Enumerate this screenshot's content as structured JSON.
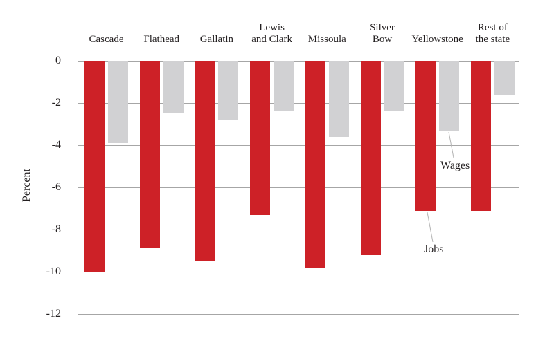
{
  "chart_data": {
    "type": "bar",
    "title": "",
    "ylabel": "Percent",
    "xlabel": "",
    "grid": true,
    "ylim": [
      -12,
      0
    ],
    "yticks": [
      0,
      -2,
      -4,
      -6,
      -8,
      -10,
      -12
    ],
    "categories": [
      {
        "label": "Cascade",
        "lines": [
          "Cascade"
        ]
      },
      {
        "label": "Flathead",
        "lines": [
          "Flathead"
        ]
      },
      {
        "label": "Gallatin",
        "lines": [
          "Gallatin"
        ]
      },
      {
        "label": "Lewis and Clark",
        "lines": [
          "Lewis",
          "and Clark"
        ]
      },
      {
        "label": "Missoula",
        "lines": [
          "Missoula"
        ]
      },
      {
        "label": "Silver Bow",
        "lines": [
          "Silver",
          "Bow"
        ]
      },
      {
        "label": "Yellowstone",
        "lines": [
          "Yellowstone"
        ]
      },
      {
        "label": "Rest of the state",
        "lines": [
          "Rest of",
          "the state"
        ]
      }
    ],
    "series": [
      {
        "name": "Jobs",
        "color": "#cd2127",
        "values": [
          -10.0,
          -8.9,
          -9.5,
          -7.3,
          -9.8,
          -9.2,
          -7.1,
          -7.1
        ]
      },
      {
        "name": "Wages",
        "color": "#d1d1d3",
        "values": [
          -3.9,
          -2.5,
          -2.8,
          -2.4,
          -3.6,
          -2.4,
          -3.3,
          -1.6
        ]
      }
    ],
    "legend_position": "inline-annotations",
    "annotations": [
      {
        "text": "Jobs",
        "series": "Jobs",
        "category": "Yellowstone"
      },
      {
        "text": "Wages",
        "series": "Wages",
        "category": "Yellowstone"
      }
    ],
    "colors": {
      "jobs_bar": "#cd2127",
      "wages_bar": "#d1d1d3",
      "gridline": "#a6a6a6",
      "leader_line": "#b3b3b3",
      "text": "#231f20",
      "background": "#ffffff"
    }
  }
}
